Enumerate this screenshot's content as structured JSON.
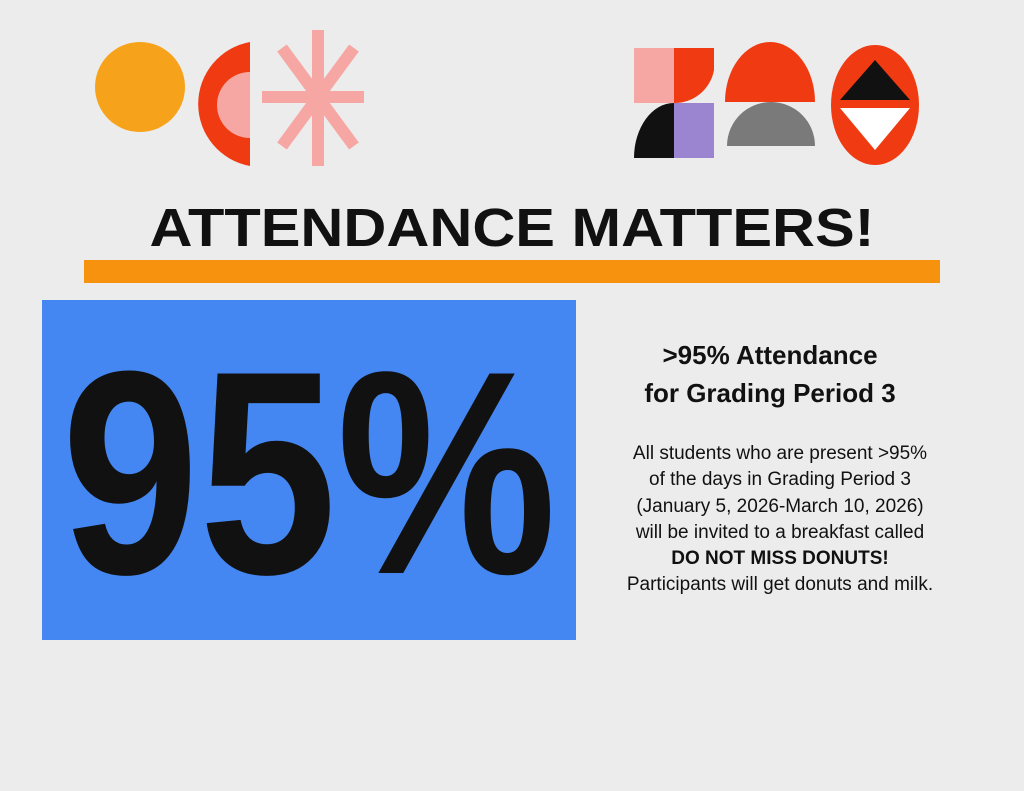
{
  "title": "ATTENDANCE MATTERS!",
  "big_number": "95%",
  "heading": [
    ">95% Attendance",
    "for Grading Period 3"
  ],
  "body": [
    "All students who are present >95%",
    "of the days in Grading Period 3",
    "(January 5, 2026-March 10, 2026)",
    "will be invited to a breakfast called",
    "DO NOT MISS DONUTS!",
    "Participants will get donuts and milk."
  ]
}
